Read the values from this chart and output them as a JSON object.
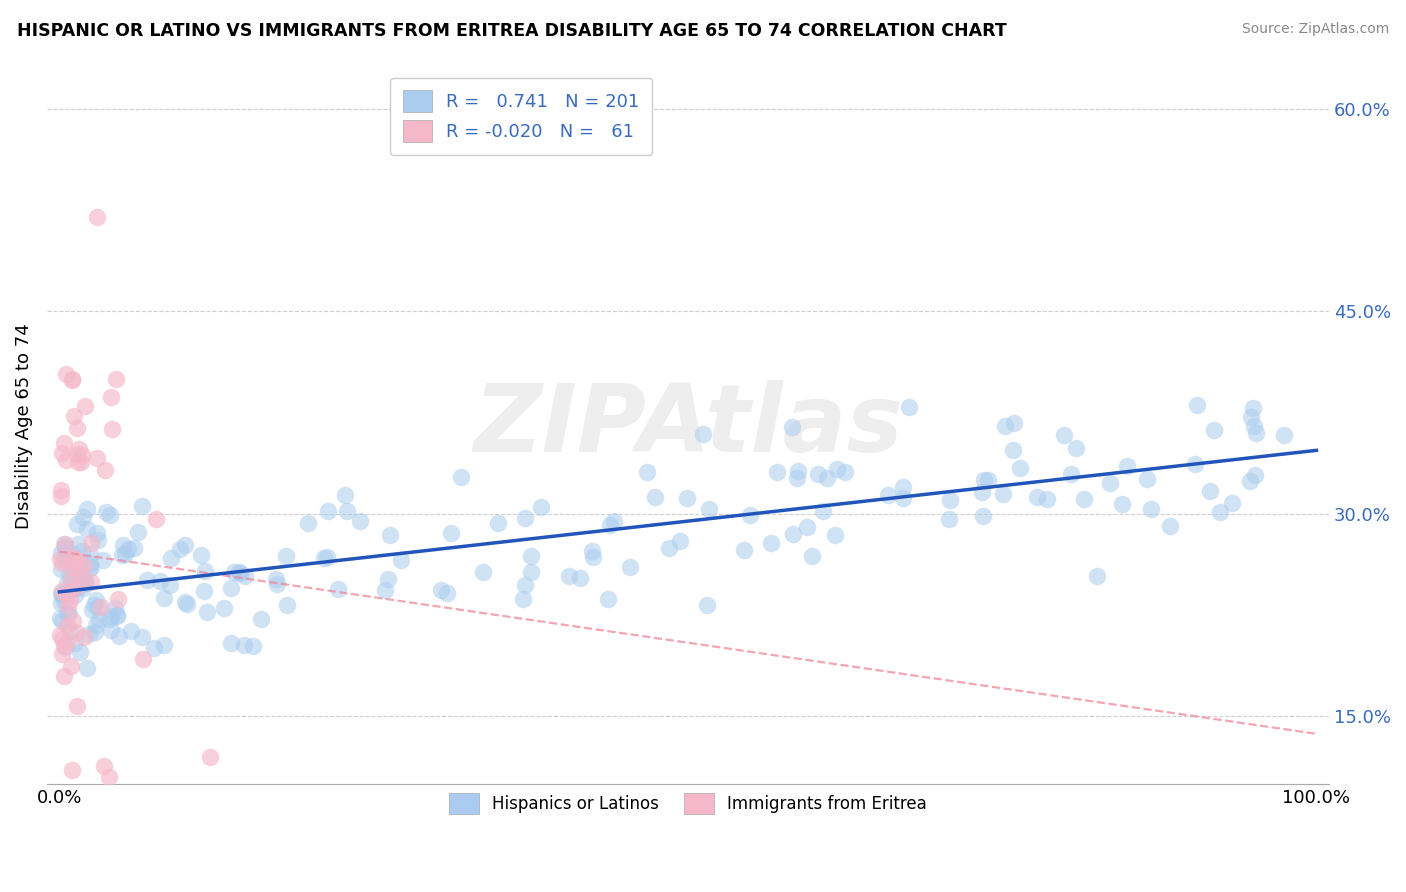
{
  "title": "HISPANIC OR LATINO VS IMMIGRANTS FROM ERITREA DISABILITY AGE 65 TO 74 CORRELATION CHART",
  "source": "Source: ZipAtlas.com",
  "ylabel": "Disability Age 65 to 74",
  "xlim": [
    -0.01,
    1.01
  ],
  "ylim": [
    0.1,
    0.63
  ],
  "xticks": [
    0.0,
    1.0
  ],
  "xticklabels": [
    "0.0%",
    "100.0%"
  ],
  "ytick_positions": [
    0.15,
    0.3,
    0.45,
    0.6
  ],
  "ytick_labels": [
    "15.0%",
    "30.0%",
    "45.0%",
    "60.0%"
  ],
  "r_blue": 0.741,
  "n_blue": 201,
  "r_pink": -0.02,
  "n_pink": 61,
  "blue_fill": "#aaccee",
  "pink_fill": "#f5b8ca",
  "blue_line": "#2255bb",
  "pink_line": "#ee8899",
  "bg": "#ffffff",
  "watermark": "ZIPAtlas",
  "legend_labels": [
    "Hispanics or Latinos",
    "Immigrants from Eritrea"
  ],
  "grid_color": "#bbbbbb",
  "tick_color": "#3a6bbf"
}
